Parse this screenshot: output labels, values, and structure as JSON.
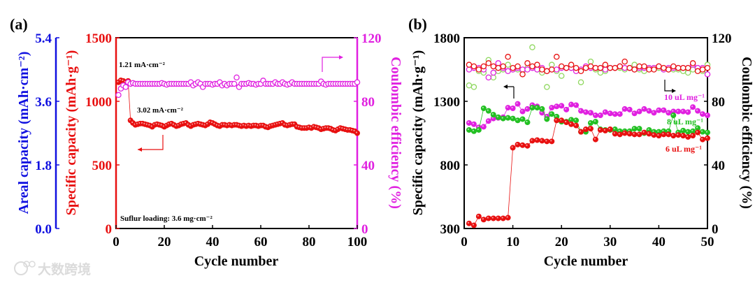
{
  "watermark": "大数跨境",
  "chart_data": [
    {
      "panel_label": "(a)",
      "type": "scatter",
      "xlabel": "Cycle number",
      "xlim": [
        0,
        100
      ],
      "xticks": [
        0,
        20,
        40,
        60,
        80,
        100
      ],
      "axes": {
        "areal": {
          "label": "Areal capacity (mAh·cm⁻²)",
          "lim": [
            0,
            5.4
          ],
          "ticks": [
            "0.0",
            "1.8",
            "3.6",
            "5.4"
          ],
          "color": "#1010e0"
        },
        "specific": {
          "label": "Specific capacity (mAh·g⁻¹)",
          "lim": [
            0,
            1500
          ],
          "ticks": [
            0,
            500,
            1000,
            1500
          ],
          "color": "#e81010"
        },
        "ce": {
          "label": "Coulombic efficiency (%)",
          "lim": [
            0,
            120
          ],
          "ticks": [
            0,
            40,
            80,
            120
          ],
          "color": "#e020e0"
        }
      },
      "annotations": [
        "1.21 mA·cm⁻²",
        "3.02 mA·cm⁻²",
        "Suflur loading: 3.6 mg·cm⁻²"
      ],
      "series": [
        {
          "name": "Specific capacity",
          "axis": "specific",
          "marker": "filled",
          "color": "#e81010",
          "values": [
            1150,
            1165,
            1160,
            1150,
            1160,
            850,
            830,
            815,
            820,
            825,
            825,
            820,
            815,
            810,
            800,
            815,
            820,
            815,
            810,
            800,
            810,
            820,
            825,
            815,
            805,
            810,
            820,
            825,
            830,
            815,
            805,
            815,
            820,
            825,
            820,
            815,
            810,
            820,
            835,
            830,
            820,
            810,
            805,
            815,
            815,
            810,
            815,
            810,
            815,
            815,
            810,
            805,
            810,
            805,
            810,
            805,
            810,
            810,
            805,
            810,
            810,
            800,
            795,
            805,
            810,
            815,
            820,
            825,
            830,
            815,
            810,
            815,
            820,
            820,
            800,
            795,
            790,
            790,
            790,
            795,
            790,
            800,
            795,
            790,
            780,
            785,
            790,
            790,
            785,
            775,
            770,
            780,
            790,
            785,
            780,
            775,
            775,
            770,
            765,
            750
          ]
        },
        {
          "name": "Coulombic efficiency",
          "axis": "ce",
          "marker": "open",
          "color": "#e020e0",
          "values": [
            84,
            88,
            90,
            89,
            92,
            91,
            91.5,
            91,
            91,
            91,
            91,
            91,
            91,
            91,
            91,
            91,
            91,
            91,
            91.5,
            91,
            90.5,
            91,
            91,
            91,
            91,
            91,
            91,
            91,
            91,
            91,
            92,
            90,
            91,
            92,
            91,
            89,
            91,
            91,
            91,
            90.5,
            91,
            91,
            92,
            90,
            91,
            90,
            91,
            91,
            91,
            95,
            89,
            91,
            91,
            91,
            91.5,
            91,
            91,
            90.5,
            91,
            91,
            93,
            91,
            91,
            91,
            91,
            92,
            91,
            91,
            92,
            91,
            90.5,
            91,
            92,
            91,
            91,
            91,
            91,
            91,
            91,
            91,
            91,
            91,
            91,
            91,
            92.5,
            91,
            90.5,
            91,
            91,
            91,
            91,
            91,
            91,
            91,
            91,
            91,
            91,
            91,
            91,
            92
          ]
        }
      ]
    },
    {
      "panel_label": "(b)",
      "type": "scatter",
      "xlabel": "Cycle number",
      "xlim": [
        0,
        50
      ],
      "xticks": [
        0,
        10,
        20,
        30,
        40,
        50
      ],
      "axes": {
        "specific": {
          "label": "Specific capacity (mAh·g⁻¹)",
          "lim": [
            300,
            1800
          ],
          "ticks": [
            300,
            800,
            1300,
            1800
          ],
          "color": "#000000"
        },
        "ce": {
          "label": "Coulombic efficiency (%)",
          "lim": [
            0,
            120
          ],
          "ticks": [
            0,
            40,
            80,
            120
          ],
          "color": "#000000"
        }
      },
      "series": [
        {
          "name": "10 uL mg⁻¹",
          "axis": "specific",
          "marker": "filled",
          "color": "#e020e0",
          "values": [
            1130,
            1120,
            1095,
            1100,
            1145,
            1165,
            1170,
            1175,
            1250,
            1245,
            1280,
            1220,
            1240,
            1270,
            1260,
            1210,
            1180,
            1250,
            1260,
            1265,
            1235,
            1275,
            1270,
            1225,
            1215,
            1210,
            1190,
            1190,
            1215,
            1205,
            1200,
            1200,
            1240,
            1235,
            1205,
            1220,
            1240,
            1225,
            1210,
            1230,
            1230,
            1210,
            1220,
            1220,
            1220,
            1215,
            1255,
            1225,
            1200,
            1190
          ]
        },
        {
          "name": "8 uL mg⁻¹",
          "axis": "specific",
          "marker": "filled",
          "color": "#22c022",
          "values": [
            1075,
            1065,
            1075,
            1245,
            1225,
            1195,
            1175,
            1165,
            1170,
            1165,
            1150,
            1160,
            1135,
            1250,
            1250,
            1240,
            1160,
            1200,
            1180,
            1140,
            1140,
            1155,
            1150,
            1060,
            1060,
            1130,
            1140,
            1080,
            1075,
            1075,
            1080,
            1065,
            1065,
            1065,
            1085,
            1085,
            1050,
            1075,
            1060,
            1060,
            1065,
            1065,
            1190,
            1055,
            1070,
            1060,
            1065,
            1090,
            1060,
            1055
          ]
        },
        {
          "name": "6 uL mg⁻¹",
          "axis": "specific",
          "marker": "filled",
          "color": "#e81010",
          "values": [
            340,
            325,
            395,
            370,
            380,
            380,
            380,
            380,
            385,
            935,
            960,
            955,
            950,
            990,
            995,
            990,
            985,
            985,
            1150,
            1150,
            1135,
            1120,
            1110,
            1060,
            1080,
            1085,
            1000,
            1075,
            1070,
            1080,
            1045,
            1040,
            1050,
            1045,
            1040,
            1040,
            1055,
            1045,
            1035,
            1030,
            1040,
            1040,
            1030,
            1035,
            1030,
            1020,
            1030,
            1055,
            1000,
            1010
          ]
        },
        {
          "name": "CE 8 uL mg⁻¹",
          "axis": "ce",
          "marker": "open",
          "color": "#90d860",
          "values": [
            90,
            89,
            99,
            98,
            106,
            95,
            99,
            100,
            103,
            100,
            100,
            99,
            101,
            114,
            100,
            98,
            89,
            103,
            99,
            96,
            101,
            101,
            100,
            92,
            101,
            105,
            100,
            98,
            99,
            101,
            101,
            101,
            100,
            101,
            103,
            100,
            99,
            101,
            101,
            101,
            100,
            100,
            100,
            100,
            99,
            98,
            100,
            101,
            99,
            103
          ]
        },
        {
          "name": "CE 10 uL mg⁻¹",
          "axis": "ce",
          "marker": "open",
          "color": "#e020e0",
          "values": [
            100,
            101,
            101,
            100,
            95,
            98,
            104,
            101,
            99,
            100,
            101,
            100,
            100,
            101,
            100,
            101,
            99,
            100,
            100,
            101,
            101,
            101,
            99,
            100,
            102,
            101,
            101,
            101,
            100,
            101,
            101,
            102,
            101,
            101,
            100,
            101,
            101,
            101,
            101,
            102,
            100,
            101,
            101,
            101,
            101,
            101,
            103,
            101,
            101,
            97
          ]
        },
        {
          "name": "CE 6 uL mg⁻¹",
          "axis": "ce",
          "marker": "open",
          "color": "#e81010",
          "values": [
            103,
            102,
            100,
            102,
            104,
            102,
            101,
            102,
            108,
            101,
            102,
            97,
            104,
            102,
            103,
            100,
            99,
            100,
            108,
            102,
            101,
            103,
            101,
            99,
            101,
            102,
            101,
            101,
            103,
            101,
            101,
            102,
            105,
            101,
            100,
            102,
            102,
            100,
            100,
            102,
            101,
            100,
            102,
            101,
            101,
            101,
            104,
            99,
            100,
            101
          ]
        }
      ]
    }
  ]
}
